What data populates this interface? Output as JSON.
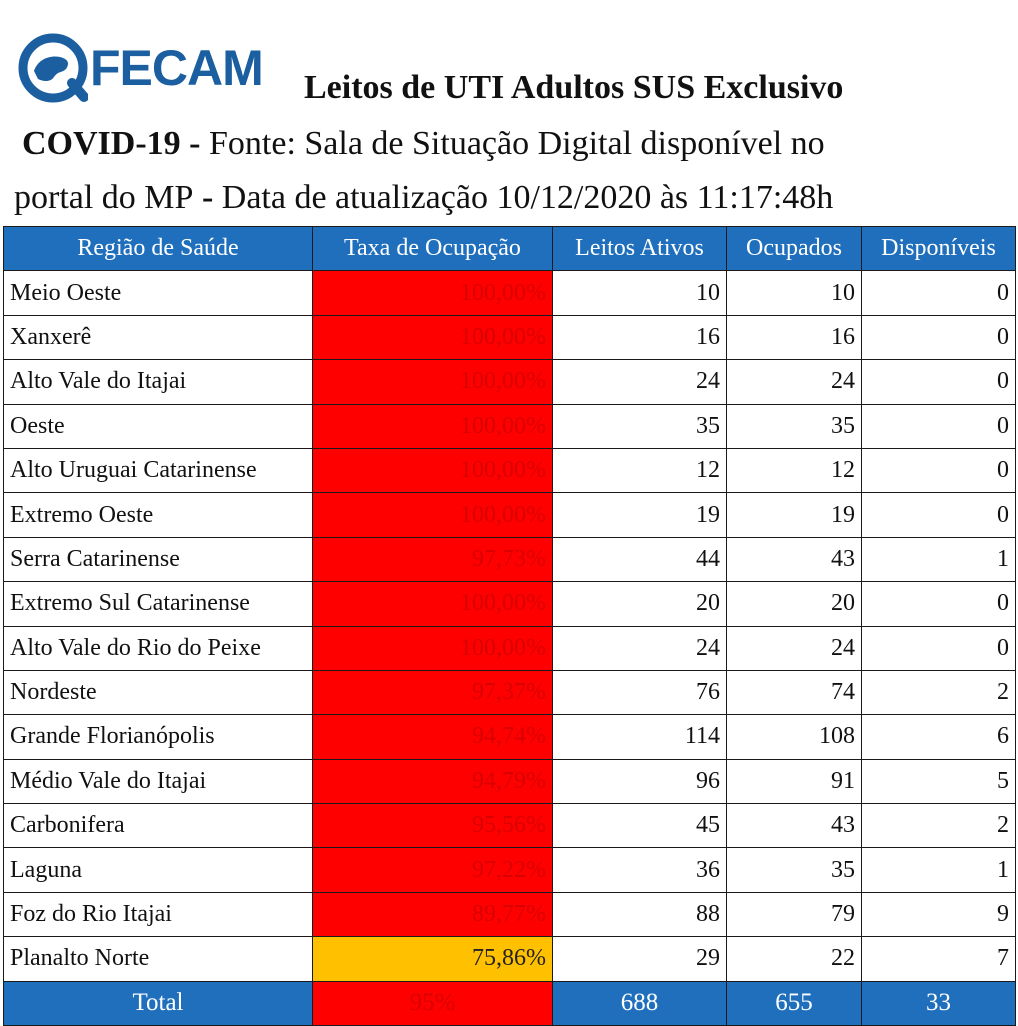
{
  "header": {
    "logo_text": "FECAM",
    "title_bold": "Leitos de UTI Adultos SUS Exclusivo",
    "covid": "COVID-19",
    "dash1": " - ",
    "source": "Fonte: Sala de Situação Digital disponível no",
    "portal": "portal do MP",
    "dash2": " - ",
    "update": "Data de atualização 10/12/2020 às 11:17:48h"
  },
  "colors": {
    "header_blue": "#1f6fbd",
    "critical_red": "#ff0000",
    "warning_yellow": "#ffc000"
  },
  "columns": [
    "Região de Saúde",
    "Taxa de Ocupação",
    "Leitos Ativos",
    "Ocupados",
    "Disponíveis"
  ],
  "rows": [
    {
      "region": "Meio Oeste",
      "rate": "100,00%",
      "active": "10",
      "occupied": "10",
      "available": "0"
    },
    {
      "region": "Xanxerê",
      "rate": "100,00%",
      "active": "16",
      "occupied": "16",
      "available": "0"
    },
    {
      "region": "Alto Vale do Itajai",
      "rate": "100,00%",
      "active": "24",
      "occupied": "24",
      "available": "0"
    },
    {
      "region": "Oeste",
      "rate": "100,00%",
      "active": "35",
      "occupied": "35",
      "available": "0"
    },
    {
      "region": "Alto Uruguai Catarinense",
      "rate": "100,00%",
      "active": "12",
      "occupied": "12",
      "available": "0"
    },
    {
      "region": "Extremo Oeste",
      "rate": "100,00%",
      "active": "19",
      "occupied": "19",
      "available": "0"
    },
    {
      "region": "Serra Catarinense",
      "rate": "97,73%",
      "active": "44",
      "occupied": "43",
      "available": "1"
    },
    {
      "region": "Extremo Sul Catarinense",
      "rate": "100,00%",
      "active": "20",
      "occupied": "20",
      "available": "0"
    },
    {
      "region": "Alto Vale do Rio do Peixe",
      "rate": "100,00%",
      "active": "24",
      "occupied": "24",
      "available": "0"
    },
    {
      "region": "Nordeste",
      "rate": "97,37%",
      "active": "76",
      "occupied": "74",
      "available": "2"
    },
    {
      "region": "Grande Florianópolis",
      "rate": "94,74%",
      "active": "114",
      "occupied": "108",
      "available": "6"
    },
    {
      "region": "Médio Vale do Itajai",
      "rate": "94,79%",
      "active": "96",
      "occupied": "91",
      "available": "5"
    },
    {
      "region": "Carbonifera",
      "rate": "95,56%",
      "active": "45",
      "occupied": "43",
      "available": "2"
    },
    {
      "region": "Laguna",
      "rate": "97,22%",
      "active": "36",
      "occupied": "35",
      "available": "1"
    },
    {
      "region": "Foz do Rio Itajai",
      "rate": "89,77%",
      "active": "88",
      "occupied": "79",
      "available": "9"
    },
    {
      "region": "Planalto Norte",
      "rate": "75,86%",
      "active": "29",
      "occupied": "22",
      "available": "7",
      "level": "warning"
    }
  ],
  "total": {
    "label": "Total",
    "rate": "95%",
    "active": "688",
    "occupied": "655",
    "available": "33"
  }
}
